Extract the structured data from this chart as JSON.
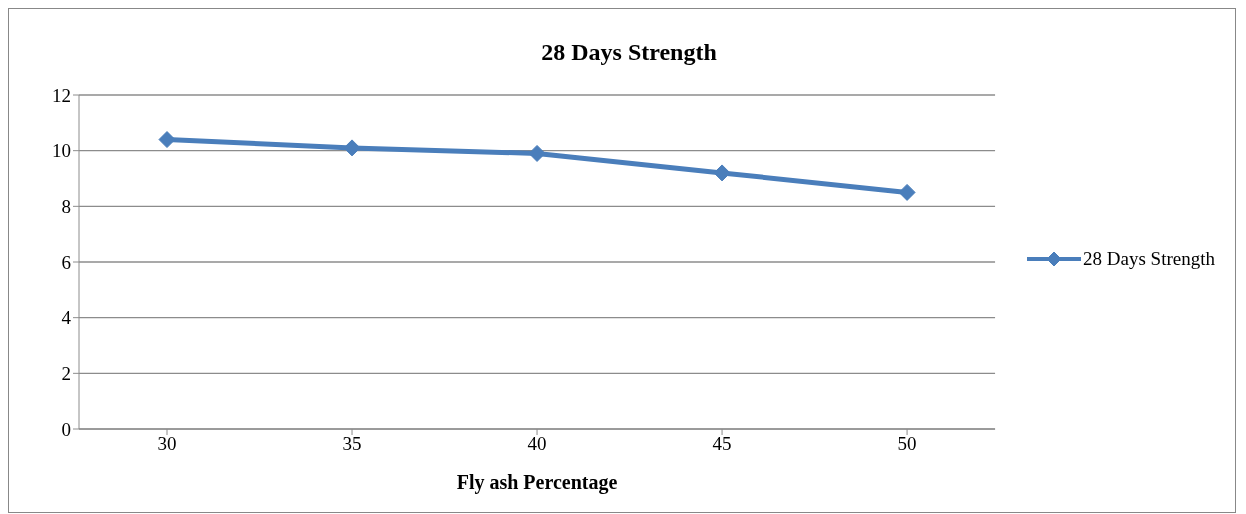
{
  "chart_data": {
    "type": "line",
    "title": "28 Days Strength",
    "xlabel": "Fly ash Percentage",
    "categories": [
      "30",
      "35",
      "40",
      "45",
      "50"
    ],
    "series": [
      {
        "name": "28 Days Strength",
        "color": "#4a7ebb",
        "values": [
          10.4,
          10.1,
          9.9,
          9.2,
          8.5
        ]
      }
    ],
    "ylim": [
      0,
      12
    ],
    "yticks": [
      0,
      2,
      4,
      6,
      8,
      10,
      12
    ],
    "grid": "y",
    "legend": "right",
    "marker": "diamond",
    "line_style": "solid"
  }
}
